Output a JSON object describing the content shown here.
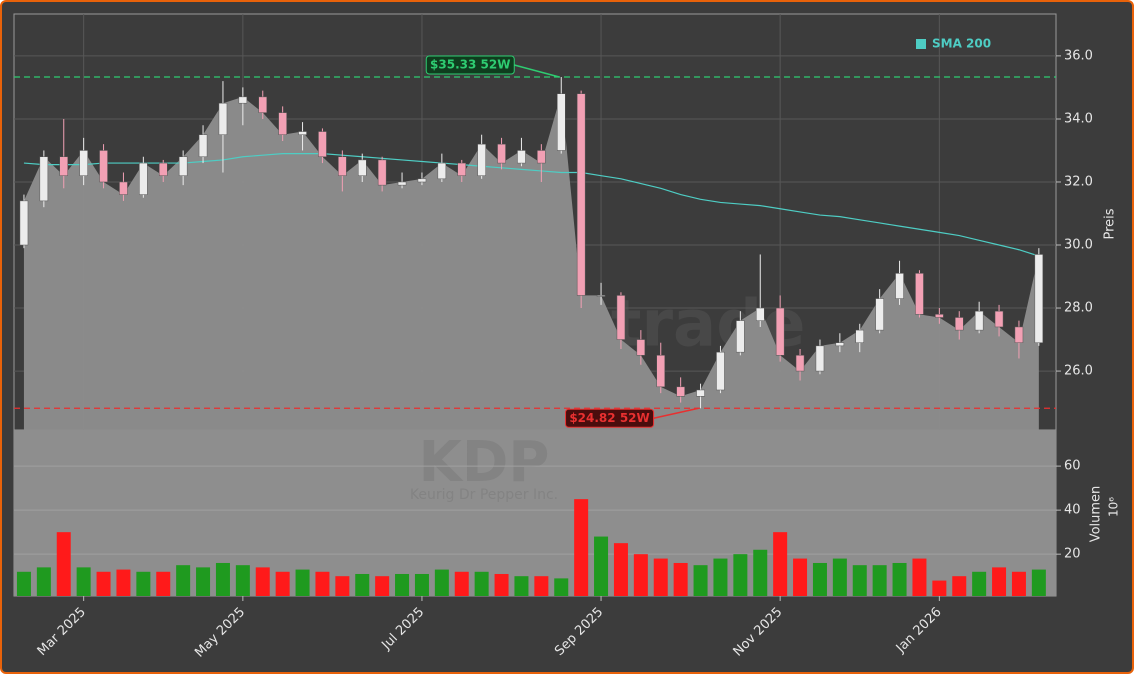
{
  "chart_data": [
    {
      "type": "candlestick",
      "y_label": "Preis",
      "watermark": "forexsignale.trade",
      "ticker": "KDP",
      "company": "Keurig Dr Pepper Inc.",
      "categories": [
        null,
        null,
        null,
        "Mar 2025",
        null,
        null,
        null,
        null,
        null,
        null,
        null,
        "May 2025",
        null,
        null,
        null,
        null,
        null,
        null,
        null,
        null,
        "Jul 2025",
        null,
        null,
        null,
        null,
        null,
        null,
        null,
        null,
        "Sep 2025",
        null,
        null,
        null,
        null,
        null,
        null,
        null,
        null,
        "Nov 2025",
        null,
        null,
        null,
        null,
        null,
        null,
        null,
        "Jan 2026",
        null,
        null,
        null,
        null,
        null
      ],
      "open": [
        30.0,
        31.4,
        32.8,
        32.2,
        33.0,
        32.0,
        31.6,
        32.6,
        32.2,
        32.8,
        33.5,
        34.5,
        34.7,
        34.2,
        33.5,
        33.6,
        32.8,
        32.2,
        32.7,
        31.9,
        32.0,
        32.1,
        32.6,
        32.2,
        33.2,
        32.6,
        33.0,
        33.0,
        34.8,
        28.4,
        28.4,
        27.0,
        26.5,
        25.5,
        25.2,
        25.4,
        26.6,
        27.6,
        28.0,
        26.5,
        26.0,
        26.8,
        26.9,
        27.3,
        28.3,
        29.1,
        27.8,
        27.7,
        27.3,
        27.9,
        27.4,
        26.9
      ],
      "high": [
        31.6,
        33.0,
        34.0,
        33.4,
        33.2,
        32.3,
        32.8,
        32.7,
        33.0,
        33.8,
        35.2,
        35.0,
        34.9,
        34.4,
        33.9,
        33.7,
        33.0,
        32.9,
        32.8,
        32.3,
        32.3,
        32.9,
        32.7,
        33.5,
        33.4,
        33.4,
        33.2,
        35.33,
        34.9,
        28.8,
        28.5,
        27.3,
        26.9,
        25.8,
        25.6,
        26.8,
        27.9,
        29.7,
        28.4,
        26.7,
        27.0,
        27.2,
        27.5,
        28.6,
        29.5,
        29.2,
        28.0,
        27.9,
        28.2,
        28.1,
        27.6,
        29.9
      ],
      "low": [
        29.9,
        31.2,
        31.8,
        31.9,
        31.8,
        31.4,
        31.5,
        32.0,
        31.9,
        32.6,
        32.3,
        33.8,
        34.0,
        33.3,
        33.0,
        32.6,
        31.7,
        32.0,
        31.7,
        31.8,
        31.9,
        32.0,
        32.0,
        32.1,
        32.4,
        32.5,
        32.0,
        32.9,
        28.0,
        28.1,
        26.7,
        26.2,
        25.3,
        25.0,
        24.82,
        25.3,
        26.5,
        27.4,
        26.3,
        25.7,
        25.9,
        26.6,
        26.6,
        27.2,
        28.1,
        27.7,
        27.5,
        27.0,
        27.2,
        27.1,
        26.4,
        26.8
      ],
      "close": [
        31.4,
        32.8,
        32.2,
        33.0,
        32.0,
        31.6,
        32.6,
        32.2,
        32.8,
        33.5,
        34.5,
        34.7,
        34.2,
        33.5,
        33.6,
        32.8,
        32.2,
        32.7,
        31.9,
        32.0,
        32.1,
        32.6,
        32.2,
        33.2,
        32.6,
        33.0,
        32.6,
        34.8,
        28.4,
        28.4,
        27.0,
        26.5,
        25.5,
        25.2,
        25.4,
        26.6,
        27.6,
        28.0,
        26.5,
        26.0,
        26.8,
        26.9,
        27.3,
        28.3,
        29.1,
        27.8,
        27.7,
        27.3,
        27.9,
        27.4,
        26.9,
        29.7
      ],
      "up_color": "#ececec",
      "down_color": "#f2a0b4",
      "area_color": "#8e8e8e",
      "series": [
        {
          "name": "SMA 200",
          "color": "#4ecdc4",
          "values": [
            32.6,
            32.55,
            32.55,
            32.55,
            32.6,
            32.6,
            32.6,
            32.6,
            32.6,
            32.65,
            32.7,
            32.8,
            32.85,
            32.9,
            32.9,
            32.9,
            32.85,
            32.8,
            32.75,
            32.7,
            32.65,
            32.6,
            32.55,
            32.5,
            32.45,
            32.4,
            32.35,
            32.3,
            32.3,
            32.2,
            32.1,
            31.95,
            31.8,
            31.6,
            31.45,
            31.35,
            31.3,
            31.25,
            31.15,
            31.05,
            30.95,
            30.9,
            30.8,
            30.7,
            30.6,
            30.5,
            30.4,
            30.3,
            30.15,
            30.0,
            29.85,
            29.65
          ]
        }
      ],
      "annotations": [
        {
          "value": 35.33,
          "label": "$35.33 52W",
          "color": "#2ecc71",
          "kind": "high"
        },
        {
          "value": 24.82,
          "label": "$24.82 52W",
          "color": "#e83030",
          "kind": "low"
        }
      ],
      "ylim": [
        24.13,
        37.33
      ],
      "yticks": [
        {
          "value": 26,
          "label": "26.0"
        },
        {
          "value": 28,
          "label": "28.0"
        },
        {
          "value": 30,
          "label": "30.0"
        },
        {
          "value": 32,
          "label": "32.0"
        },
        {
          "value": 34,
          "label": "34.0"
        },
        {
          "value": 36,
          "label": "36.0"
        }
      ],
      "grid": true,
      "legend": "upper right"
    },
    {
      "type": "bar",
      "y_label": "Volumen",
      "y_unit": "10⁶",
      "values": [
        12,
        14,
        30,
        14,
        12,
        13,
        12,
        12,
        15,
        14,
        16,
        15,
        14,
        12,
        13,
        12,
        10,
        11,
        10,
        11,
        11,
        13,
        12,
        12,
        11,
        10,
        10,
        9,
        45,
        28,
        25,
        20,
        18,
        16,
        15,
        18,
        20,
        22,
        30,
        18,
        16,
        18,
        15,
        15,
        16,
        18,
        8,
        10,
        12,
        14,
        12,
        13
      ],
      "up_color": "#1f9a1f",
      "down_color": "#ff1a1a",
      "ylim": [
        1,
        76.4
      ],
      "yticks": [
        20,
        40,
        60
      ],
      "grid": true
    }
  ]
}
